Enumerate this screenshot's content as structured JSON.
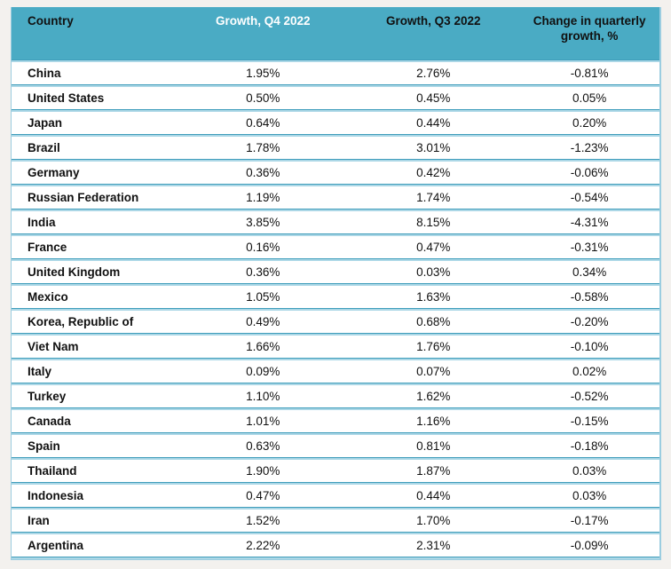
{
  "page": {
    "background": "#f3f1ee"
  },
  "colors": {
    "header_bg": "#4aabc4",
    "separator_dark": "#3f9dbb",
    "separator_light": "#abd7e6",
    "outer_border": "#9ccde0",
    "row_bg": "#ffffff",
    "text": "#111111"
  },
  "chart_data": {
    "type": "table",
    "columns": [
      {
        "label": "Country",
        "align": "left",
        "text_color": "#111111"
      },
      {
        "label": "Growth, Q4 2022",
        "align": "center",
        "text_color": "#ffffff"
      },
      {
        "label": "Growth, Q3 2022",
        "align": "center",
        "text_color": "#111111"
      },
      {
        "label": "Change in quarterly growth, %",
        "align": "center",
        "text_color": "#111111"
      }
    ],
    "rows": [
      [
        "China",
        "1.95%",
        "2.76%",
        "-0.81%"
      ],
      [
        "United States",
        "0.50%",
        "0.45%",
        "0.05%"
      ],
      [
        "Japan",
        "0.64%",
        "0.44%",
        "0.20%"
      ],
      [
        "Brazil",
        "1.78%",
        "3.01%",
        "-1.23%"
      ],
      [
        "Germany",
        "0.36%",
        "0.42%",
        "-0.06%"
      ],
      [
        "Russian Federation",
        "1.19%",
        "1.74%",
        "-0.54%"
      ],
      [
        "India",
        "3.85%",
        "8.15%",
        "-4.31%"
      ],
      [
        "France",
        "0.16%",
        "0.47%",
        "-0.31%"
      ],
      [
        "United Kingdom",
        "0.36%",
        "0.03%",
        "0.34%"
      ],
      [
        "Mexico",
        "1.05%",
        "1.63%",
        "-0.58%"
      ],
      [
        "Korea, Republic of",
        "0.49%",
        "0.68%",
        "-0.20%"
      ],
      [
        "Viet Nam",
        "1.66%",
        "1.76%",
        "-0.10%"
      ],
      [
        "Italy",
        "0.09%",
        "0.07%",
        "0.02%"
      ],
      [
        "Turkey",
        "1.10%",
        "1.62%",
        "-0.52%"
      ],
      [
        "Canada",
        "1.01%",
        "1.16%",
        "-0.15%"
      ],
      [
        "Spain",
        "0.63%",
        "0.81%",
        "-0.18%"
      ],
      [
        "Thailand",
        "1.90%",
        "1.87%",
        "0.03%"
      ],
      [
        "Indonesia",
        "0.47%",
        "0.44%",
        "0.03%"
      ],
      [
        "Iran",
        "1.52%",
        "1.70%",
        "-0.17%"
      ],
      [
        "Argentina",
        "2.22%",
        "2.31%",
        "-0.09%"
      ]
    ]
  }
}
